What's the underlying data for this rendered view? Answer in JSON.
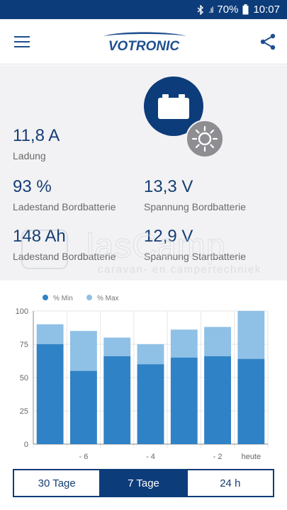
{
  "status_bar": {
    "signal": ".ıl",
    "battery": "70%",
    "time": "10:07",
    "icons": [
      "bluetooth-icon",
      "signal-icon",
      "battery-icon"
    ]
  },
  "app_bar": {
    "logo_text": "VOTRONIC",
    "icons": [
      "menu-icon",
      "share-icon"
    ]
  },
  "metrics": {
    "ladung": {
      "value": "11,8 A",
      "label": "Ladung"
    },
    "ladestand": {
      "value": "93 %",
      "label": "Ladestand Bordbatterie"
    },
    "spannung_bord": {
      "value": "13,3 V",
      "label": "Spannung Bordbatterie"
    },
    "kapazitaet": {
      "value": "148 Ah",
      "label": "Ladestand Bordbatterie"
    },
    "spannung_start": {
      "value": "12,9 V",
      "label": "Spannung Startbatterie"
    }
  },
  "watermark": {
    "title": "lasCamp",
    "subtitle": "caravan- en campertechniek"
  },
  "colors": {
    "brand": "#0d3c7a",
    "min_series": "#2f82c5",
    "max_series": "#8fc0e6",
    "sun_badge": "#8e8e92"
  },
  "chart_data": {
    "type": "bar",
    "x": [
      -7,
      -6,
      -5,
      -4,
      -3,
      -2,
      -1
    ],
    "x_tick_labels": [
      "- 6",
      "- 4",
      "- 2",
      "heute"
    ],
    "y_ticks": [
      "100",
      "75",
      "50",
      "25",
      "0"
    ],
    "ylim": [
      0,
      100
    ],
    "legend": {
      "position": "top-left",
      "entries": [
        "% Min",
        "% Max"
      ]
    },
    "series": [
      {
        "name": "% Min",
        "values": [
          75,
          55,
          66,
          60,
          65,
          66,
          64
        ]
      },
      {
        "name": "% Max",
        "values": [
          90,
          85,
          80,
          75,
          86,
          88,
          100
        ]
      }
    ],
    "grid": true
  },
  "range_tabs": [
    {
      "label": "30 Tage",
      "active": false
    },
    {
      "label": "7 Tage",
      "active": true
    },
    {
      "label": "24 h",
      "active": false
    }
  ]
}
